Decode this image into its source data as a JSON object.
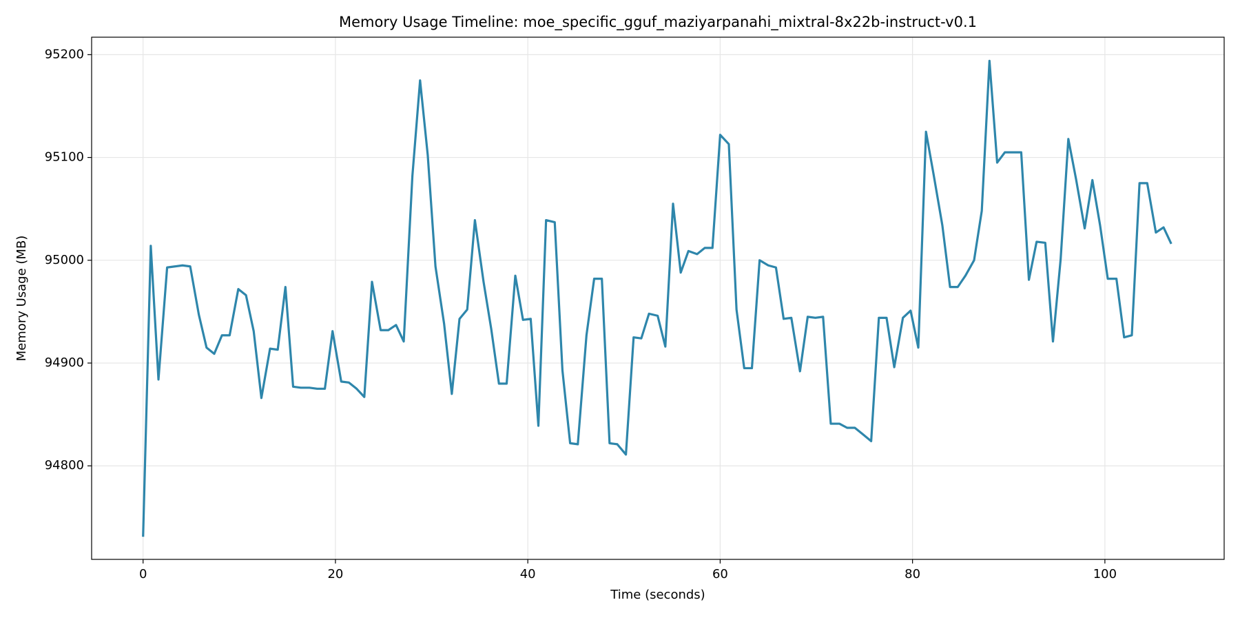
{
  "chart_data": {
    "type": "line",
    "title": "Memory Usage Timeline: moe_specific_gguf_maziyarpanahi_mixtral-8x22b-instruct-v0.1",
    "x_label": "Time (seconds)",
    "y_label": "Memory Usage (MB)",
    "x": [
      0,
      0.8,
      1.6,
      2.5,
      3.3,
      4.1,
      4.9,
      5.8,
      6.6,
      7.4,
      8.2,
      9.0,
      9.9,
      10.7,
      11.5,
      12.3,
      13.2,
      14.0,
      14.8,
      15.6,
      16.4,
      17.3,
      18.1,
      18.9,
      19.7,
      20.6,
      21.4,
      22.2,
      23.0,
      23.8,
      24.7,
      25.5,
      26.3,
      27.1,
      28.0,
      28.8,
      29.6,
      30.4,
      31.3,
      32.1,
      32.9,
      33.7,
      34.5,
      35.4,
      36.2,
      37.0,
      37.8,
      38.7,
      39.5,
      40.3,
      41.1,
      41.9,
      42.8,
      43.6,
      44.4,
      45.2,
      46.1,
      46.9,
      47.7,
      48.5,
      49.3,
      50.2,
      51.0,
      51.8,
      52.6,
      53.5,
      54.3,
      55.1,
      55.9,
      56.7,
      57.6,
      58.4,
      59.2,
      60.0,
      60.9,
      61.7,
      62.5,
      63.3,
      64.1,
      65.0,
      65.8,
      66.6,
      67.4,
      68.3,
      69.1,
      69.9,
      70.7,
      71.5,
      72.4,
      73.2,
      74.0,
      74.8,
      75.7,
      76.5,
      77.3,
      78.1,
      79.0,
      79.8,
      80.6,
      81.4,
      82.2,
      83.1,
      83.9,
      84.7,
      85.5,
      86.4,
      87.2,
      88.0,
      88.8,
      89.6,
      90.5,
      91.3,
      92.1,
      92.9,
      93.8,
      94.6,
      95.4,
      96.2,
      97.0,
      97.9,
      98.7,
      99.5,
      100.3,
      101.2,
      102.0,
      102.8,
      103.6,
      104.4,
      105.3,
      106.1,
      106.9
    ],
    "series": [
      {
        "name": "Memory Usage",
        "color": "#2e86ab",
        "values": [
          94731,
          95014,
          94884,
          94993,
          94994,
          94995,
          94994,
          94947,
          94915,
          94909,
          94927,
          94927,
          94972,
          94966,
          94931,
          94866,
          94914,
          94913,
          94974,
          94877,
          94876,
          94876,
          94875,
          94875,
          94931,
          94882,
          94881,
          94875,
          94867,
          94979,
          94932,
          94932,
          94937,
          94921,
          95082,
          95175,
          95102,
          94994,
          94938,
          94870,
          94943,
          94952,
          95039,
          94979,
          94933,
          94880,
          94880,
          94985,
          94942,
          94943,
          94839,
          95039,
          95037,
          94893,
          94822,
          94821,
          94927,
          94982,
          94982,
          94822,
          94821,
          94811,
          94925,
          94924,
          94948,
          94946,
          94916,
          95055,
          94988,
          95009,
          95006,
          95012,
          95012,
          95122,
          95113,
          94952,
          94895,
          94895,
          95000,
          94995,
          94993,
          94943,
          94944,
          94892,
          94945,
          94944,
          94945,
          94841,
          94841,
          94837,
          94837,
          94831,
          94824,
          94944,
          94944,
          94896,
          94944,
          94951,
          94915,
          95125,
          95083,
          95034,
          94974,
          94974,
          94985,
          95000,
          95048,
          95194,
          95095,
          95105,
          95105,
          95105,
          94981,
          95018,
          95017,
          94921,
          95001,
          95118,
          95079,
          95031,
          95078,
          95034,
          94982,
          94982,
          94925,
          94927,
          95075,
          95075,
          95027,
          95032,
          95016
        ]
      }
    ],
    "xlim": [
      -5.35,
      112.4
    ],
    "ylim": [
      94709,
      95217
    ],
    "xticks": [
      0,
      20,
      40,
      60,
      80,
      100
    ],
    "yticks": [
      94800,
      94900,
      95000,
      95100,
      95200
    ],
    "grid": true
  }
}
